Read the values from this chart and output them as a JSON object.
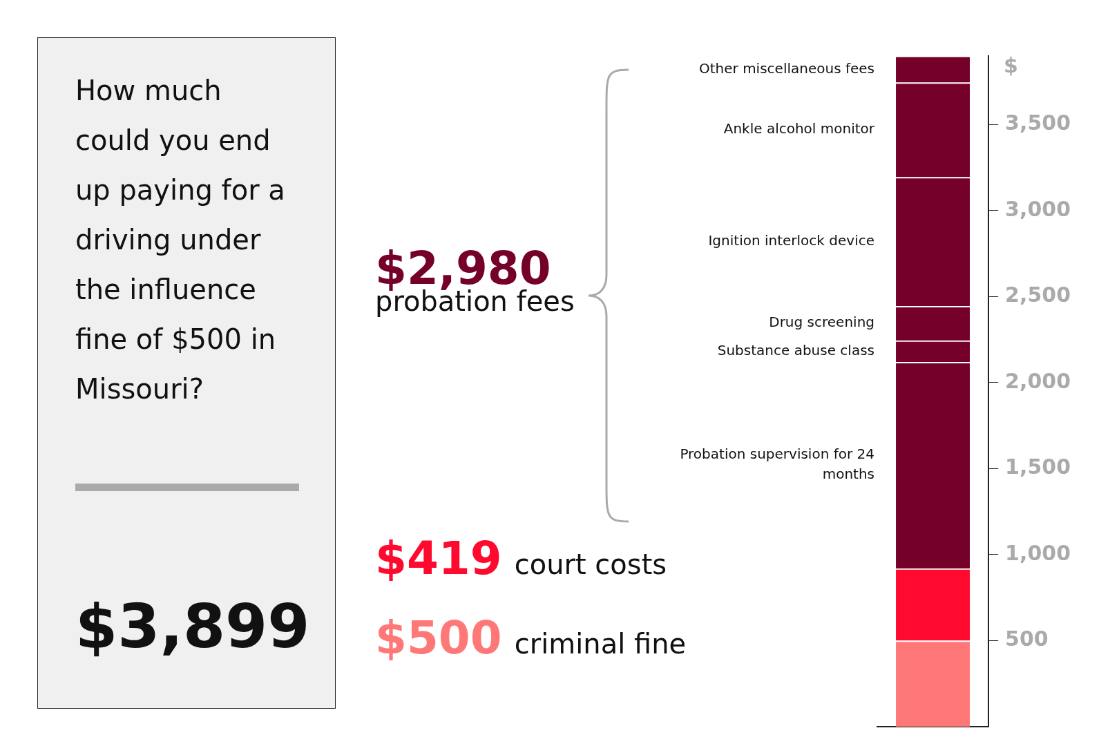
{
  "chart_data": {
    "type": "bar",
    "stacked": true,
    "title": "How much could you end up paying for a driving under the influence fine of $500 in Missouri?",
    "ylabel": "$",
    "categories": [
      null
    ],
    "series": [
      {
        "name": null,
        "color": "#ff7878",
        "values": [
          500
        ]
      },
      {
        "name": null,
        "color": "#ff0a2e",
        "values": [
          419
        ]
      },
      {
        "name": "Probation supervision for 24 months",
        "color": "#75002a",
        "values": [
          1200
        ]
      },
      {
        "name": "Substance abuse class",
        "color": "#75002a",
        "values": [
          125
        ]
      },
      {
        "name": "Drug screening",
        "color": "#75002a",
        "values": [
          200
        ]
      },
      {
        "name": "Ignition interlock device",
        "color": "#75002a",
        "values": [
          750
        ]
      },
      {
        "name": "Ankle alcohol monitor",
        "color": "#75002a",
        "values": [
          550
        ]
      },
      {
        "name": "Other miscellaneous fees",
        "color": "#75002a",
        "values": [
          155
        ]
      }
    ],
    "ylim": [
      0,
      3899
    ],
    "yticks": [
      500,
      {
        "value": 1000,
        "label": "1,000"
      },
      {
        "value": 1500,
        "label": "1,500"
      },
      {
        "value": 2000,
        "label": "2,000"
      },
      {
        "value": 2500,
        "label": "2,500"
      },
      {
        "value": 3000,
        "label": "3,000"
      },
      {
        "value": 3500,
        "label": "3,500"
      }
    ],
    "grid": false,
    "legend": false,
    "annotations": [
      "$2,980 probation fees",
      "$419 court costs",
      "$500 criminal fine",
      "$3,899"
    ]
  }
}
